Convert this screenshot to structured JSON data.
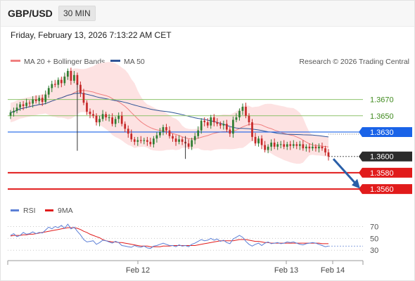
{
  "header": {
    "symbol": "GBP/USD",
    "timeframe": "30 MIN"
  },
  "timestamp": "Friday, February 13, 2026 7:13:22 AM CET",
  "attribution": "Research © 2026 Trading Central",
  "colors": {
    "ma20": "#f08080",
    "ma50": "#2f5597",
    "bands": "#fde2e2",
    "support": "#e11b1b",
    "pivot": "#1a63e8",
    "resist": "#8dc26b",
    "rsi": "#5b7fd6",
    "rsi_ma": "#e11b1b",
    "bull": "#2e7d32",
    "bear": "#c62828"
  },
  "chart_data": [
    {
      "type": "candlestick",
      "legend": [
        {
          "name": "MA 20 + Bollinger Bands",
          "color": "#f08080"
        },
        {
          "name": "MA 50",
          "color": "#2f5597"
        }
      ],
      "x_ticks": [
        "Feb 12",
        "Feb 13",
        "Feb 14"
      ],
      "ylim": [
        1.3548,
        1.3705
      ],
      "levels": [
        {
          "label": "1.3670",
          "value": 1.367,
          "kind": "resistance"
        },
        {
          "label": "1.3650",
          "value": 1.365,
          "kind": "resistance"
        },
        {
          "label": "1.3630",
          "value": 1.363,
          "kind": "pivot"
        },
        {
          "label": "1.3600",
          "value": 1.36,
          "kind": "last"
        },
        {
          "label": "1.3580",
          "value": 1.358,
          "kind": "support"
        },
        {
          "label": "1.3560",
          "value": 1.356,
          "kind": "support"
        }
      ],
      "forecast": {
        "from": 1.3597,
        "to": 1.3563
      },
      "close": [
        1.3654,
        1.3656,
        1.366,
        1.3664,
        1.3662,
        1.3666,
        1.3665,
        1.367,
        1.3668,
        1.3672,
        1.3667,
        1.3676,
        1.3684,
        1.3689,
        1.3688,
        1.3694,
        1.369,
        1.3698,
        1.3705,
        1.3693,
        1.37,
        1.3688,
        1.3678,
        1.3666,
        1.3655,
        1.3652,
        1.365,
        1.3642,
        1.3646,
        1.3652,
        1.3648,
        1.3648,
        1.364,
        1.3646,
        1.365,
        1.364,
        1.3634,
        1.3628,
        1.3621,
        1.3618,
        1.362,
        1.3619,
        1.362,
        1.3618,
        1.3615,
        1.3622,
        1.3626,
        1.363,
        1.3636,
        1.3632,
        1.3625,
        1.3622,
        1.3618,
        1.3621,
        1.3618,
        1.3616,
        1.3612,
        1.362,
        1.3625,
        1.3632,
        1.3644,
        1.3642,
        1.3638,
        1.3648,
        1.3642,
        1.364,
        1.3638,
        1.364,
        1.3633,
        1.3628,
        1.3645,
        1.3648,
        1.3656,
        1.3661,
        1.365,
        1.3642,
        1.3624,
        1.3616,
        1.3622,
        1.3614,
        1.3608,
        1.3612,
        1.3617,
        1.3612,
        1.3615,
        1.3615,
        1.3612,
        1.3615,
        1.3613,
        1.3615,
        1.3613,
        1.3615,
        1.361,
        1.3612,
        1.361,
        1.3612,
        1.361,
        1.3612,
        1.361,
        1.3605,
        1.36
      ],
      "rsi": {
        "legend": [
          {
            "name": "RSI",
            "color": "#5b7fd6"
          },
          {
            "name": "9MA",
            "color": "#e11b1b"
          }
        ],
        "ticks": [
          70,
          50,
          30
        ],
        "ylim": [
          22,
          80
        ],
        "rsi": [
          55,
          58,
          53,
          55,
          60,
          57,
          58,
          61,
          58,
          60,
          59,
          64,
          69,
          66,
          70,
          68,
          72,
          67,
          74,
          66,
          69,
          62,
          56,
          48,
          44,
          45,
          46,
          40,
          43,
          47,
          46,
          44,
          42,
          45,
          43,
          38,
          37,
          36,
          35,
          38,
          36,
          35,
          37,
          34,
          33,
          37,
          38,
          40,
          42,
          40,
          38,
          38,
          36,
          39,
          37,
          38,
          36,
          40,
          42,
          45,
          48,
          46,
          47,
          50,
          47,
          49,
          45,
          47,
          43,
          41,
          49,
          52,
          55,
          52,
          45,
          40,
          37,
          40,
          42,
          38,
          42,
          44,
          41,
          42,
          43,
          41,
          42,
          44,
          43,
          44,
          42,
          40,
          39,
          41,
          42,
          43,
          42,
          40,
          38,
          36,
          37
        ],
        "ma9": [
          54,
          55,
          55,
          55,
          56,
          56,
          57,
          57,
          58,
          59,
          60,
          61,
          62,
          63,
          64,
          65,
          66,
          67,
          68,
          68,
          68,
          67,
          65,
          62,
          60,
          57,
          55,
          53,
          51,
          48,
          46,
          45,
          44,
          44,
          43,
          43,
          42,
          41,
          40,
          39,
          38,
          37,
          37,
          37,
          36,
          36,
          36,
          36,
          37,
          37,
          37,
          38,
          38,
          38,
          38,
          38,
          38,
          38,
          38,
          39,
          40,
          41,
          42,
          43,
          44,
          45,
          46,
          46,
          46,
          46,
          46,
          47,
          48,
          48,
          48,
          47,
          46,
          45,
          45,
          44,
          43,
          43,
          42,
          42,
          42,
          42,
          42,
          42,
          42,
          42,
          42,
          42,
          42,
          42,
          42,
          42,
          42,
          42,
          41,
          41,
          41
        ]
      }
    }
  ]
}
